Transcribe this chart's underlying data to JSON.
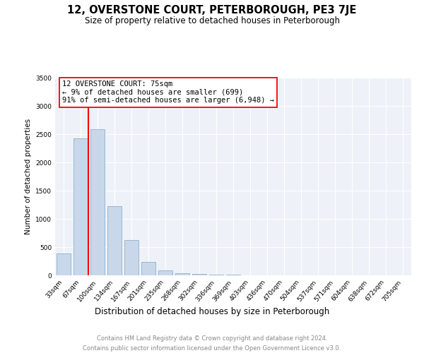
{
  "title": "12, OVERSTONE COURT, PETERBOROUGH, PE3 7JE",
  "subtitle": "Size of property relative to detached houses in Peterborough",
  "xlabel": "Distribution of detached houses by size in Peterborough",
  "ylabel": "Number of detached properties",
  "footer_line1": "Contains HM Land Registry data © Crown copyright and database right 2024.",
  "footer_line2": "Contains public sector information licensed under the Open Government Licence v3.0.",
  "categories": [
    "33sqm",
    "67sqm",
    "100sqm",
    "134sqm",
    "167sqm",
    "201sqm",
    "235sqm",
    "268sqm",
    "302sqm",
    "336sqm",
    "369sqm",
    "403sqm",
    "436sqm",
    "470sqm",
    "504sqm",
    "537sqm",
    "571sqm",
    "604sqm",
    "638sqm",
    "672sqm",
    "705sqm"
  ],
  "values": [
    390,
    2420,
    2590,
    1230,
    630,
    240,
    90,
    40,
    30,
    15,
    10,
    5,
    3,
    2,
    1,
    1,
    0,
    0,
    0,
    0,
    0
  ],
  "bar_color": "#c8d8ea",
  "bar_edge_color": "#8ab0cc",
  "vline_x": 1.45,
  "vline_color": "red",
  "annotation_text": "12 OVERSTONE COURT: 75sqm\n← 9% of detached houses are smaller (699)\n91% of semi-detached houses are larger (6,948) →",
  "annotation_box_facecolor": "white",
  "annotation_box_edgecolor": "red",
  "ylim": [
    0,
    3500
  ],
  "yticks": [
    0,
    500,
    1000,
    1500,
    2000,
    2500,
    3000,
    3500
  ],
  "bg_color": "#eef2f8",
  "grid_color": "white",
  "title_fontsize": 10.5,
  "subtitle_fontsize": 8.5,
  "xlabel_fontsize": 8.5,
  "ylabel_fontsize": 7.5,
  "tick_fontsize": 6.5,
  "annotation_fontsize": 7.5,
  "footer_fontsize": 6.0
}
